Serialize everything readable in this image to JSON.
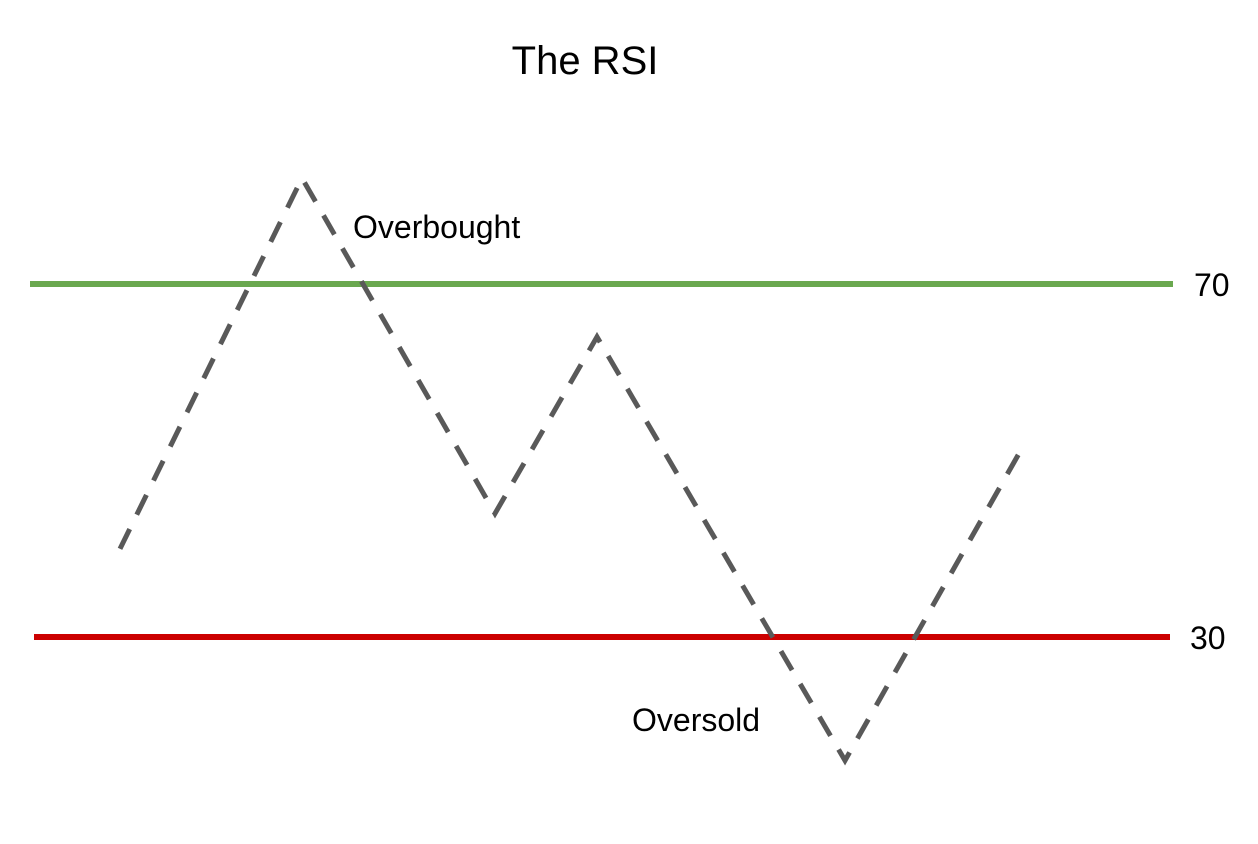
{
  "chart_data": {
    "type": "line",
    "title": "The RSI",
    "levels": [
      {
        "value": 70,
        "label": "70",
        "color": "#6aa84f"
      },
      {
        "value": 30,
        "label": "30",
        "color": "#cc0000"
      }
    ],
    "series": [
      {
        "values": [
          40,
          82,
          44,
          64,
          16,
          52
        ],
        "color": "#595959",
        "style": "dashed"
      }
    ],
    "annotations": [
      {
        "text": "Overbought"
      },
      {
        "text": "Oversold"
      }
    ]
  }
}
